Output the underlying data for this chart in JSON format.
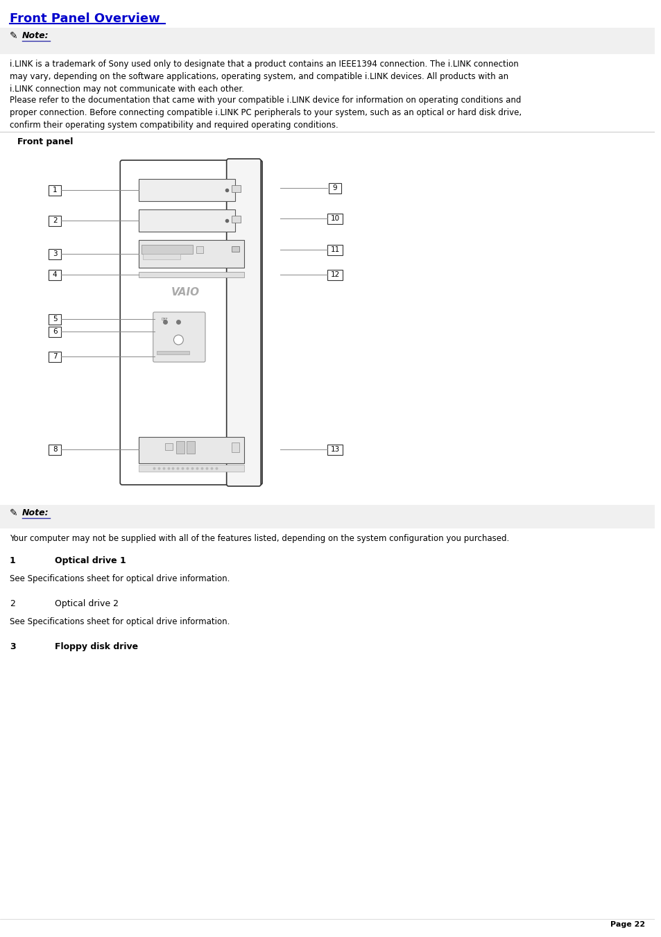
{
  "title": "Front Panel Overview",
  "title_color": "#0000cc",
  "bg_color": "#ffffff",
  "note_bg": "#f0f0f0",
  "note1_text": "Note:",
  "note1_body": "i.LINK is a trademark of Sony used only to designate that a product contains an IEEE1394 connection. The i.LINK connection\nmay vary, depending on the software applications, operating system, and compatible i.LINK devices. All products with an\ni.LINK connection may not communicate with each other.",
  "note1_body2": "Please refer to the documentation that came with your compatible i.LINK device for information on operating conditions and\nproper connection. Before connecting compatible i.LINK PC peripherals to your system, such as an optical or hard disk drive,\nconfirm their operating system compatibility and required operating conditions.",
  "front_panel_label": "Front panel",
  "note2_text": "Note:",
  "note2_body": "Your computer may not be supplied with all of the features listed, depending on the system configuration you purchased.",
  "item1_num": "1",
  "item1_title": "Optical drive 1",
  "item1_bold": true,
  "item1_body": "See Specifications sheet for optical drive information.",
  "item2_num": "2",
  "item2_title": "Optical drive 2",
  "item2_bold": false,
  "item2_body": "See Specifications sheet for optical drive information.",
  "item3_num": "3",
  "item3_title": "Floppy disk drive",
  "item3_bold": true,
  "page_num": "Page 22",
  "text_color": "#000000",
  "line_color": "#cccccc",
  "note_line_color": "#3333aa"
}
